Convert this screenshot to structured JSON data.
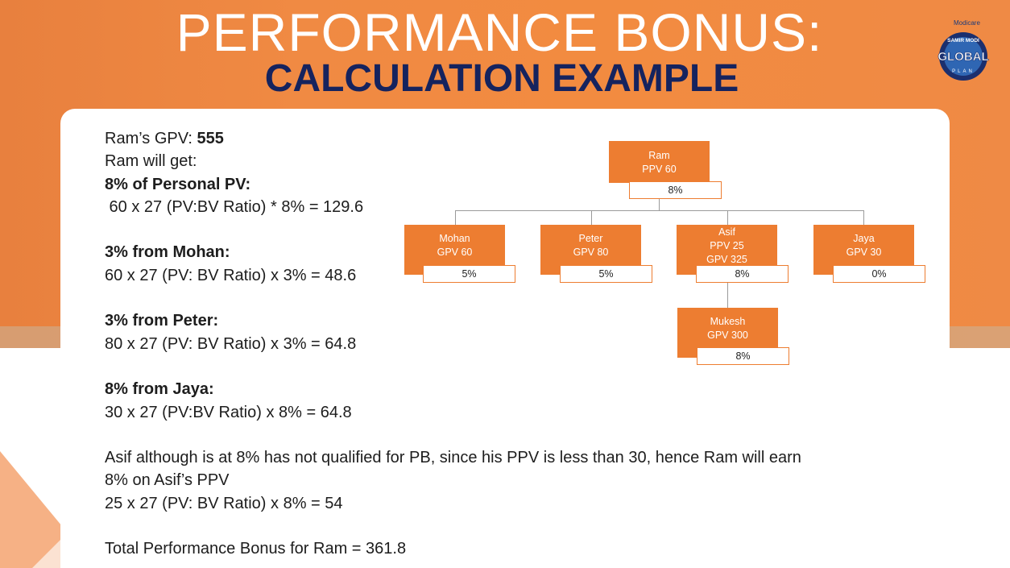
{
  "slide": {
    "title": "PERFORMANCE BONUS:",
    "subtitle": "CALCULATION EXAMPLE",
    "logo": {
      "brand": "Modicare",
      "arc_text": "SAMIR MODI",
      "word": "GLOBAL",
      "under_text": "PLAN"
    }
  },
  "calc": {
    "gpv_label": "Ram’s GPV: ",
    "gpv_value": "555",
    "will_get": "Ram will get:",
    "personal_heading": "8% of Personal PV:",
    "personal_calc": " 60 x 27 (PV:BV Ratio) * 8% = 129.6",
    "mohan_heading": "3% from Mohan:",
    "mohan_calc": "60 x 27 (PV: BV Ratio) x 3% = 48.6",
    "peter_heading": "3% from Peter:",
    "peter_calc": "80 x 27 (PV: BV Ratio) x 3% = 64.8",
    "jaya_heading": "8% from Jaya:",
    "jaya_calc": "30 x 27 (PV:BV Ratio) x 8% = 64.8",
    "asif_note": "Asif although is at 8% has not qualified for PB, since his PPV is less than 30, hence Ram will earn 8% on Asif’s PPV",
    "asif_calc": "25 x 27 (PV: BV Ratio) x 8% = 54",
    "total": "Total Performance Bonus for Ram = 361.8"
  },
  "tree": {
    "ram": {
      "name": "Ram",
      "line1": "PPV 60",
      "pct": "8%"
    },
    "mohan": {
      "name": "Mohan",
      "line1": "GPV 60",
      "pct": "5%"
    },
    "peter": {
      "name": "Peter",
      "line1": "GPV 80",
      "pct": "5%"
    },
    "asif": {
      "name": "Asif",
      "line1": "PPV 25",
      "line2": "GPV 325",
      "pct": "8%"
    },
    "jaya": {
      "name": "Jaya",
      "line1": "GPV 30",
      "pct": "0%"
    },
    "mukesh": {
      "name": "Mukesh",
      "line1": "GPV 300",
      "pct": "8%"
    }
  },
  "colors": {
    "orange": "#ed7d31",
    "navy": "#15235e",
    "connector": "#9a9a9a"
  }
}
